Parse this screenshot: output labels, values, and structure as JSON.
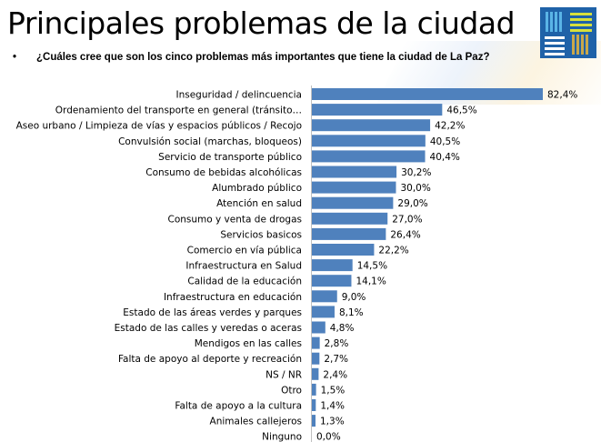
{
  "header": {
    "title": "Principales problemas de la ciudad",
    "question_bullet": "•",
    "question": "¿Cuáles cree que son los cinco problemas más importantes que tiene la ciudad de La Paz?",
    "logo_icon": "basket-weave-logo-icon"
  },
  "colors": {
    "bar": "#4f81bd",
    "axis": "#bfbfbf",
    "logo_bg": "#1f62a8",
    "logo_blue": "#5ab4e6",
    "logo_yellow": "#d7e03c",
    "logo_white": "#ffffff",
    "logo_gold": "#c9a84a"
  },
  "chart_data": {
    "type": "bar",
    "orientation": "horizontal",
    "title": "",
    "xlabel": "",
    "ylabel": "",
    "xlim": [
      0,
      100
    ],
    "grid": false,
    "legend": "none",
    "value_suffix": "%",
    "categories": [
      "Inseguridad / delincuencia",
      "Ordenamiento del transporte en general (tránsito…",
      "Aseo urbano / Limpieza de vías y espacios públicos / Recojo",
      "Convulsión social (marchas, bloqueos)",
      "Servicio de transporte público",
      "Consumo de bebidas alcohólicas",
      "Alumbrado público",
      "Atención en salud",
      "Consumo y venta de drogas",
      "Servicios basicos",
      "Comercio en vía pública",
      "Infraestructura en Salud",
      "Calidad de la educación",
      "Infraestructura en educación",
      "Estado de las áreas verdes y parques",
      "Estado de las calles y veredas o aceras",
      "Mendigos en las calles",
      "Falta de apoyo al deporte y recreación",
      "NS / NR",
      "Otro",
      "Falta de apoyo a la cultura",
      "Animales callejeros",
      "Ninguno"
    ],
    "values": [
      82.4,
      46.5,
      42.2,
      40.5,
      40.4,
      30.2,
      30.0,
      29.0,
      27.0,
      26.4,
      22.2,
      14.5,
      14.1,
      9.0,
      8.1,
      4.8,
      2.8,
      2.7,
      2.4,
      1.5,
      1.4,
      1.3,
      0.0
    ],
    "data_labels": [
      "82,4%",
      "46,5%",
      "42,2%",
      "40,5%",
      "40,4%",
      "30,2%",
      "30,0%",
      "29,0%",
      "27,0%",
      "26,4%",
      "22,2%",
      "14,5%",
      "14,1%",
      "9,0%",
      "8,1%",
      "4,8%",
      "2,8%",
      "2,7%",
      "2,4%",
      "1,5%",
      "1,4%",
      "1,3%",
      "0,0%"
    ]
  }
}
